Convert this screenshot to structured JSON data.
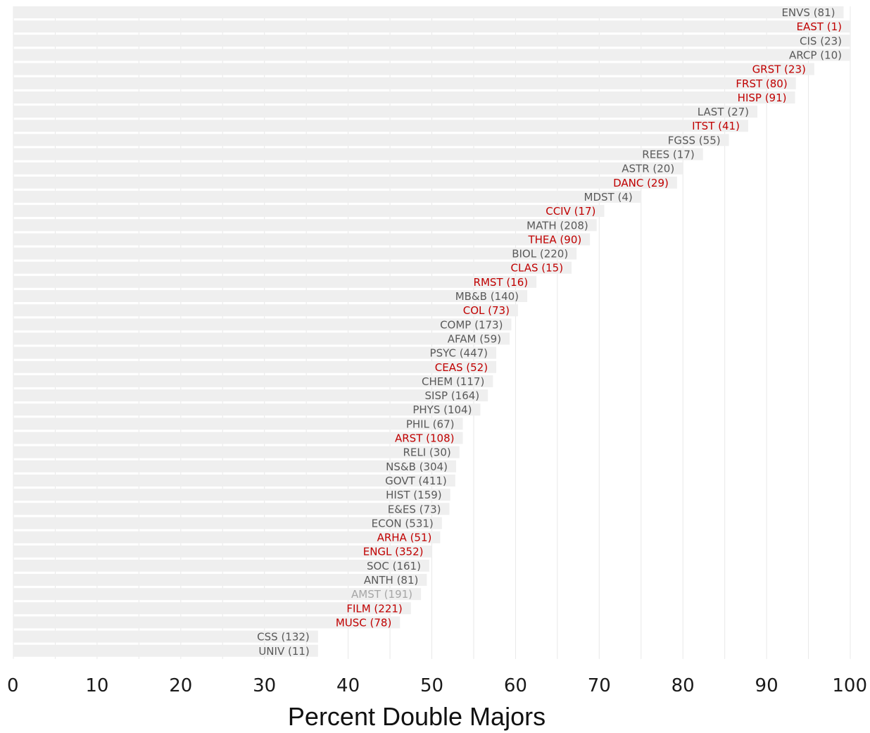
{
  "chart_data": {
    "type": "bar",
    "orientation": "horizontal",
    "xlabel": "Percent Double Majors",
    "xlim": [
      0,
      100
    ],
    "xticks": [
      "0",
      "10",
      "20",
      "30",
      "40",
      "50",
      "60",
      "70",
      "80",
      "90",
      "100"
    ],
    "grid": true,
    "colors": {
      "bar": "#efefef",
      "label_default": "#595959",
      "label_highlight": "#c00000",
      "label_muted": "#a6a6a6",
      "grid": "#e8e8e8"
    },
    "bars": [
      {
        "label": "ENVS (81)",
        "value": 99.2,
        "style": "default"
      },
      {
        "label": "EAST (1)",
        "value": 100,
        "style": "highlight"
      },
      {
        "label": "CIS (23)",
        "value": 100,
        "style": "default"
      },
      {
        "label": "ARCP (10)",
        "value": 100,
        "style": "default"
      },
      {
        "label": "GRST (23)",
        "value": 95.7,
        "style": "highlight"
      },
      {
        "label": "FRST (80)",
        "value": 93.5,
        "style": "highlight"
      },
      {
        "label": "HISP (91)",
        "value": 93.4,
        "style": "highlight"
      },
      {
        "label": "LAST (27)",
        "value": 88.9,
        "style": "default"
      },
      {
        "label": "ITST (41)",
        "value": 87.8,
        "style": "highlight"
      },
      {
        "label": "FGSS (55)",
        "value": 85.5,
        "style": "default"
      },
      {
        "label": "REES (17)",
        "value": 82.4,
        "style": "default"
      },
      {
        "label": "ASTR (20)",
        "value": 80.0,
        "style": "default"
      },
      {
        "label": "DANC (29)",
        "value": 79.3,
        "style": "highlight"
      },
      {
        "label": "MDST (4)",
        "value": 75.0,
        "style": "default"
      },
      {
        "label": "CCIV (17)",
        "value": 70.6,
        "style": "highlight"
      },
      {
        "label": "MATH (208)",
        "value": 69.7,
        "style": "default"
      },
      {
        "label": "THEA (90)",
        "value": 68.9,
        "style": "highlight"
      },
      {
        "label": "BIOL (220)",
        "value": 67.3,
        "style": "default"
      },
      {
        "label": "CLAS (15)",
        "value": 66.7,
        "style": "highlight"
      },
      {
        "label": "RMST (16)",
        "value": 62.5,
        "style": "highlight"
      },
      {
        "label": "MB&B (140)",
        "value": 61.4,
        "style": "default"
      },
      {
        "label": "COL (73)",
        "value": 60.3,
        "style": "highlight"
      },
      {
        "label": "COMP (173)",
        "value": 59.5,
        "style": "default"
      },
      {
        "label": "AFAM (59)",
        "value": 59.3,
        "style": "default"
      },
      {
        "label": "PSYC (447)",
        "value": 57.7,
        "style": "default"
      },
      {
        "label": "CEAS (52)",
        "value": 57.7,
        "style": "highlight"
      },
      {
        "label": "CHEM (117)",
        "value": 57.3,
        "style": "default"
      },
      {
        "label": "SISP (164)",
        "value": 56.7,
        "style": "default"
      },
      {
        "label": "PHYS (104)",
        "value": 55.8,
        "style": "default"
      },
      {
        "label": "PHIL (67)",
        "value": 53.7,
        "style": "default"
      },
      {
        "label": "ARST (108)",
        "value": 53.7,
        "style": "highlight"
      },
      {
        "label": "RELI (30)",
        "value": 53.3,
        "style": "default"
      },
      {
        "label": "NS&B (304)",
        "value": 52.9,
        "style": "default"
      },
      {
        "label": "GOVT (411)",
        "value": 52.8,
        "style": "default"
      },
      {
        "label": "HIST (159)",
        "value": 52.2,
        "style": "default"
      },
      {
        "label": "E&ES (73)",
        "value": 52.1,
        "style": "default"
      },
      {
        "label": "ECON (531)",
        "value": 51.2,
        "style": "default"
      },
      {
        "label": "ARHA (51)",
        "value": 51.0,
        "style": "highlight"
      },
      {
        "label": "ENGL (352)",
        "value": 50.0,
        "style": "highlight"
      },
      {
        "label": "SOC (161)",
        "value": 49.7,
        "style": "default"
      },
      {
        "label": "ANTH (81)",
        "value": 49.4,
        "style": "default"
      },
      {
        "label": "AMST (191)",
        "value": 48.7,
        "style": "muted"
      },
      {
        "label": "FILM (221)",
        "value": 47.5,
        "style": "highlight"
      },
      {
        "label": "MUSC (78)",
        "value": 46.2,
        "style": "highlight"
      },
      {
        "label": "CSS (132)",
        "value": 36.4,
        "style": "default"
      },
      {
        "label": "UNIV (11)",
        "value": 36.4,
        "style": "default"
      }
    ]
  }
}
